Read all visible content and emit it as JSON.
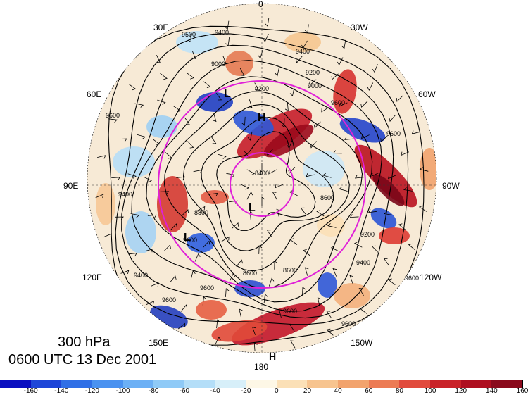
{
  "map": {
    "level": "300 hPa",
    "valid_time": "0600 UTC 13 Dec 2001",
    "longitude_labels": {
      "lon_0": "0",
      "lon_30w": "30W",
      "lon_60w": "60W",
      "lon_90w": "90W",
      "lon_120w": "120W",
      "lon_150w": "150W",
      "lon_180": "180",
      "lon_150e": "150E",
      "lon_120e": "120E",
      "lon_90e": "90E",
      "lon_60e": "60E",
      "lon_30e": "30E"
    },
    "pressure_centers": [
      {
        "label": "H",
        "region": "North Atlantic / Greenland"
      },
      {
        "label": "L",
        "region": "Near the pole"
      },
      {
        "label": "L",
        "region": "Northern Europe"
      },
      {
        "label": "L",
        "region": "Central Siberia"
      },
      {
        "label": "H",
        "region": "Bottom edge near 180"
      }
    ],
    "contour_labels": [
      "9400",
      "9500",
      "9200",
      "9000",
      "9400",
      "9600",
      "9600",
      "9600",
      "9400",
      "8600",
      "8600",
      "8600",
      "8400",
      "8800",
      "9200",
      "9400",
      "9600",
      "9400",
      "9600",
      "9600",
      "9600",
      "9600",
      "9600",
      "9200",
      "9000"
    ],
    "ring_color": "#e020d8",
    "colorbar": {
      "colors": [
        "#0a0fc0",
        "#1e46d8",
        "#2f6fe6",
        "#4a92f0",
        "#6cb0f5",
        "#8fcaf7",
        "#b4def8",
        "#d7eff9",
        "#fdf7e6",
        "#fbe0b7",
        "#f7c48f",
        "#f2a36d",
        "#ec7b54",
        "#e14b3d",
        "#c92329",
        "#ae0f20",
        "#8a0a1c"
      ],
      "ticks": [
        "-160",
        "-140",
        "-120",
        "-100",
        "-80",
        "-60",
        "-40",
        "-20",
        "0",
        "20",
        "40",
        "60",
        "80",
        "100",
        "120",
        "140",
        "160"
      ]
    }
  }
}
